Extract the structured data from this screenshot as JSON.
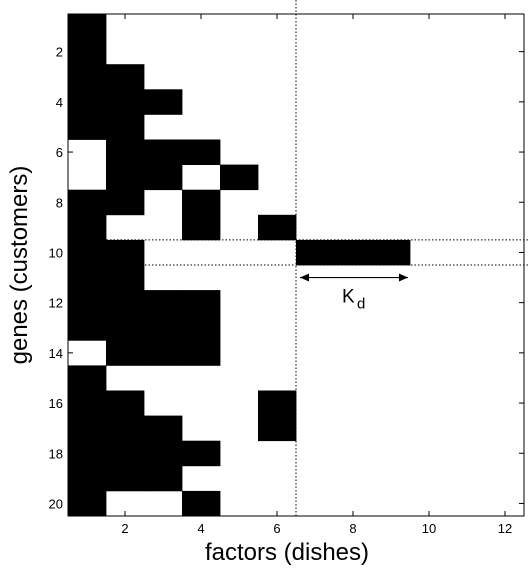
{
  "chart_data": {
    "type": "heatmap",
    "title": "",
    "xlabel": "factors (dishes)",
    "ylabel": "genes (customers)",
    "xlim": [
      0.5,
      12.5
    ],
    "ylim": [
      0.5,
      20.5
    ],
    "y_axis_direction": "top-to-bottom",
    "x_ticks": [
      "2",
      "4",
      "6",
      "8",
      "10",
      "12"
    ],
    "y_ticks": [
      "2",
      "4",
      "6",
      "8",
      "10",
      "12",
      "14",
      "16",
      "18",
      "20"
    ],
    "colors": {
      "filled": "#000000",
      "empty": "#ffffff"
    },
    "rows": [
      {
        "gene": 1,
        "factors": [
          1
        ]
      },
      {
        "gene": 2,
        "factors": [
          1
        ]
      },
      {
        "gene": 3,
        "factors": [
          1,
          2
        ]
      },
      {
        "gene": 4,
        "factors": [
          1,
          2,
          3
        ]
      },
      {
        "gene": 5,
        "factors": [
          1,
          2
        ]
      },
      {
        "gene": 6,
        "factors": [
          2,
          3,
          4
        ]
      },
      {
        "gene": 7,
        "factors": [
          2,
          3,
          5
        ]
      },
      {
        "gene": 8,
        "factors": [
          1,
          2,
          4
        ]
      },
      {
        "gene": 9,
        "factors": [
          1,
          4,
          6
        ]
      },
      {
        "gene": 10,
        "factors": [
          1,
          2,
          7,
          8,
          9
        ]
      },
      {
        "gene": 11,
        "factors": [
          1,
          2
        ]
      },
      {
        "gene": 12,
        "factors": [
          1,
          2,
          3,
          4
        ]
      },
      {
        "gene": 13,
        "factors": [
          1,
          2,
          3,
          4
        ]
      },
      {
        "gene": 14,
        "factors": [
          2,
          3,
          4
        ]
      },
      {
        "gene": 15,
        "factors": [
          1
        ]
      },
      {
        "gene": 16,
        "factors": [
          1,
          2,
          6
        ]
      },
      {
        "gene": 17,
        "factors": [
          1,
          2,
          3,
          6
        ]
      },
      {
        "gene": 18,
        "factors": [
          1,
          2,
          3,
          4
        ]
      },
      {
        "gene": 19,
        "factors": [
          1,
          2,
          3
        ]
      },
      {
        "gene": 20,
        "factors": [
          1,
          4
        ]
      }
    ],
    "reference_lines": {
      "vertical_x": [
        6.5
      ],
      "horizontal_y": [
        9.5,
        10.5
      ],
      "style": "dotted"
    },
    "annotation": {
      "text": "K",
      "subscript": "d",
      "arrow_from_x": 6.5,
      "arrow_to_x": 9.5,
      "arrow_y": 11
    }
  }
}
